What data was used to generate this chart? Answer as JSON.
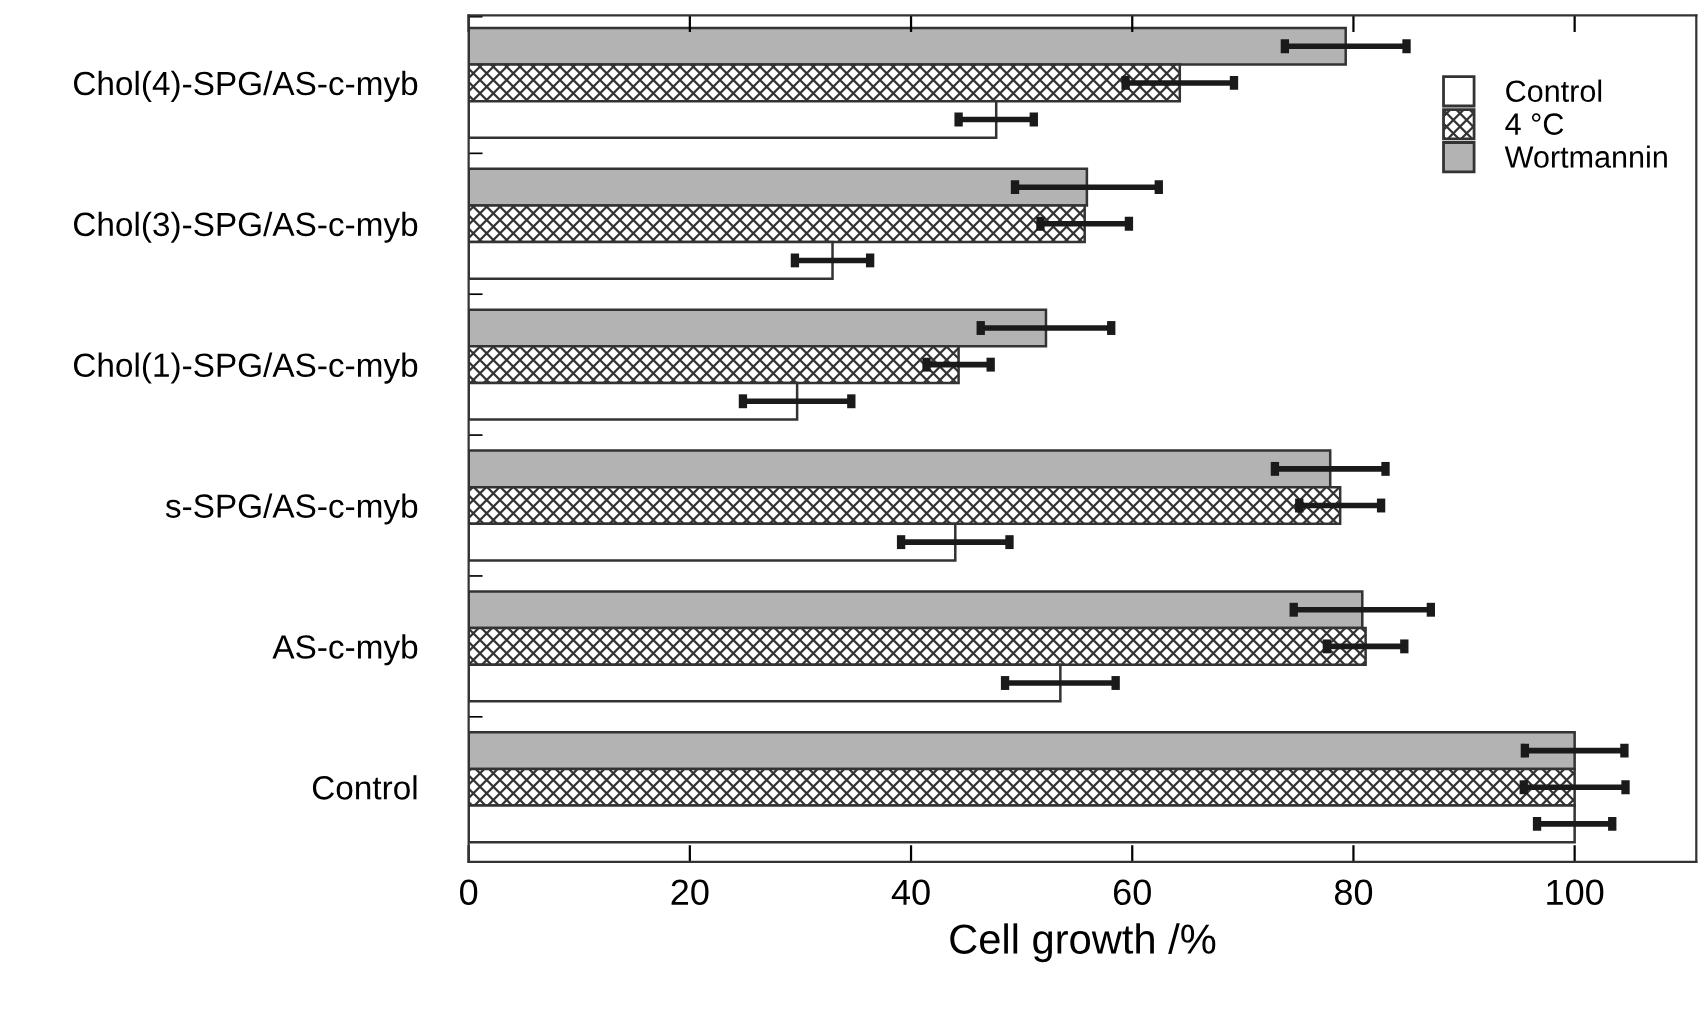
{
  "chart_data": {
    "type": "bar",
    "orientation": "horizontal",
    "xlabel": "Cell growth /%",
    "categories": [
      "Chol(4)-SPG/AS-c-myb",
      "Chol(3)-SPG/AS-c-myb",
      "Chol(1)-SPG/AS-c-myb",
      "s-SPG/AS-c-myb",
      "AS-c-myb",
      "Control"
    ],
    "series": [
      {
        "name": "Wortmannin",
        "color": "#b3b3b3",
        "values": [
          79.3,
          55.9,
          52.2,
          77.9,
          80.8,
          100
        ],
        "errors": [
          5.5,
          6.5,
          5.9,
          5.0,
          6.2,
          4.5
        ]
      },
      {
        "name": "4 °C",
        "color": "#333333",
        "values": [
          64.3,
          55.7,
          44.3,
          78.8,
          81.1,
          100
        ],
        "errors": [
          4.9,
          4.0,
          2.9,
          3.7,
          3.5,
          4.6
        ]
      },
      {
        "name": "Control",
        "color": "#ffffff",
        "values": [
          47.7,
          32.9,
          29.7,
          44.0,
          53.5,
          100
        ],
        "errors": [
          3.4,
          3.4,
          4.9,
          4.9,
          5.0,
          3.4
        ]
      }
    ],
    "xlim": [
      0,
      111
    ],
    "xticks": [
      0,
      20,
      40,
      60,
      80,
      100
    ],
    "legend": "top right",
    "grid": false
  }
}
